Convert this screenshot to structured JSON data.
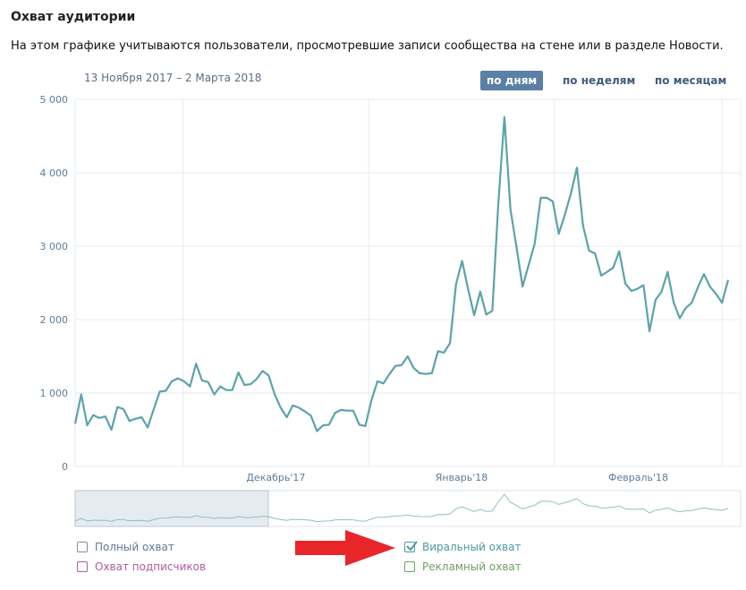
{
  "header": {
    "title": "Охват аудитории",
    "subtitle": "На этом графике учитываются пользователи, просмотревшие записи сообщества на стене или в разделе Новости."
  },
  "date_range": "13 Ноября 2017 – 2 Марта 2018",
  "period_tabs": [
    {
      "label": "по дням",
      "active": true
    },
    {
      "label": "по неделям",
      "active": false
    },
    {
      "label": "по месяцам",
      "active": false
    }
  ],
  "legend": [
    {
      "label": "Полный охват",
      "checked": false,
      "color": "#7a8ea3"
    },
    {
      "label": "Охват подписчиков",
      "checked": false,
      "color": "#b35aa3"
    },
    {
      "label": "Виральный охват",
      "checked": true,
      "color": "#4b9aa2"
    },
    {
      "label": "Рекламный охват",
      "checked": false,
      "color": "#6da161"
    }
  ],
  "colors": {
    "line": "#5ba3ab",
    "grid": "#e7ebef",
    "axis_text": "#5b7c99",
    "active_tab": "#5b7fa6",
    "annotation_arrow": "#e8262a"
  },
  "chart_data": {
    "type": "line",
    "title": "",
    "xlabel": "",
    "ylabel": "",
    "ylim": [
      0,
      5000
    ],
    "yticks": [
      0,
      1000,
      2000,
      3000,
      4000,
      5000
    ],
    "ytick_labels": [
      "0",
      "1 000",
      "2 000",
      "3 000",
      "4 000",
      "5 000"
    ],
    "x_start": "2017-11-13",
    "x_end": "2018-03-02",
    "x_month_labels": [
      "Декабрь'17",
      "Январь'18",
      "Февраль'18"
    ],
    "grid": true,
    "series": [
      {
        "name": "Виральный охват",
        "values": [
          580,
          980,
          560,
          700,
          660,
          680,
          500,
          810,
          780,
          620,
          650,
          670,
          530,
          780,
          1020,
          1030,
          1160,
          1200,
          1160,
          1090,
          1400,
          1170,
          1150,
          980,
          1090,
          1040,
          1040,
          1280,
          1110,
          1120,
          1190,
          1300,
          1240,
          980,
          800,
          670,
          830,
          800,
          750,
          690,
          480,
          560,
          570,
          730,
          770,
          760,
          760,
          570,
          550,
          900,
          1160,
          1130,
          1260,
          1370,
          1380,
          1500,
          1340,
          1270,
          1260,
          1270,
          1570,
          1550,
          1680,
          2480,
          2800,
          2410,
          2060,
          2380,
          2070,
          2120,
          3580,
          4760,
          3500,
          2990,
          2450,
          2740,
          3030,
          3660,
          3660,
          3610,
          3170,
          3430,
          3720,
          4070,
          3280,
          2940,
          2900,
          2600,
          2650,
          2710,
          2930,
          2490,
          2390,
          2420,
          2470,
          1840,
          2270,
          2380,
          2650,
          2230,
          2020,
          2160,
          2230,
          2440,
          2620,
          2450,
          2350,
          2230,
          2540
        ]
      }
    ]
  }
}
